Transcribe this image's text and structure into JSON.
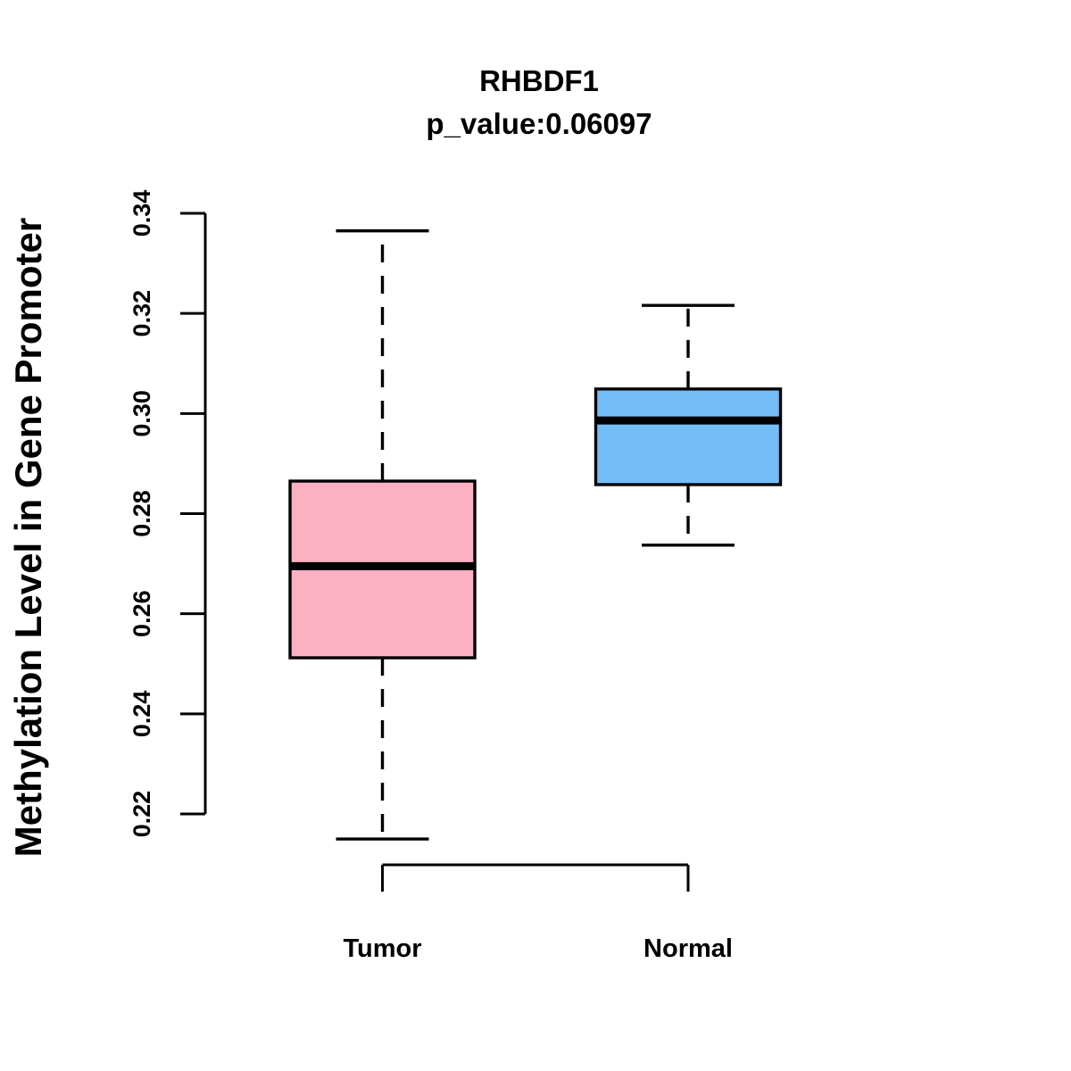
{
  "chart_data": {
    "type": "boxplot",
    "title": "RHBDF1",
    "subtitle": "p_value:0.06097",
    "p_value": 0.06097,
    "ylabel": "Methylation Level in Gene Promoter",
    "xlabel": "",
    "ylim": [
      0.22,
      0.34
    ],
    "yticks": [
      0.22,
      0.24,
      0.26,
      0.28,
      0.3,
      0.32,
      0.34
    ],
    "ytick_labels": [
      "0.22",
      "0.24",
      "0.26",
      "0.28",
      "0.30",
      "0.32",
      "0.34"
    ],
    "categories": [
      "Tumor",
      "Normal"
    ],
    "grid": false,
    "legend": null,
    "series": [
      {
        "name": "Tumor",
        "color": "#FCB1C3",
        "border_color": "#000000",
        "whisker_low": 0.215,
        "q1": 0.2512,
        "median": 0.2695,
        "q3": 0.2865,
        "whisker_high": 0.3365
      },
      {
        "name": "Normal",
        "color": "#74BEF8",
        "border_color": "#000000",
        "whisker_low": 0.2737,
        "q1": 0.2858,
        "median": 0.2986,
        "q3": 0.3049,
        "whisker_high": 0.3216
      }
    ]
  }
}
